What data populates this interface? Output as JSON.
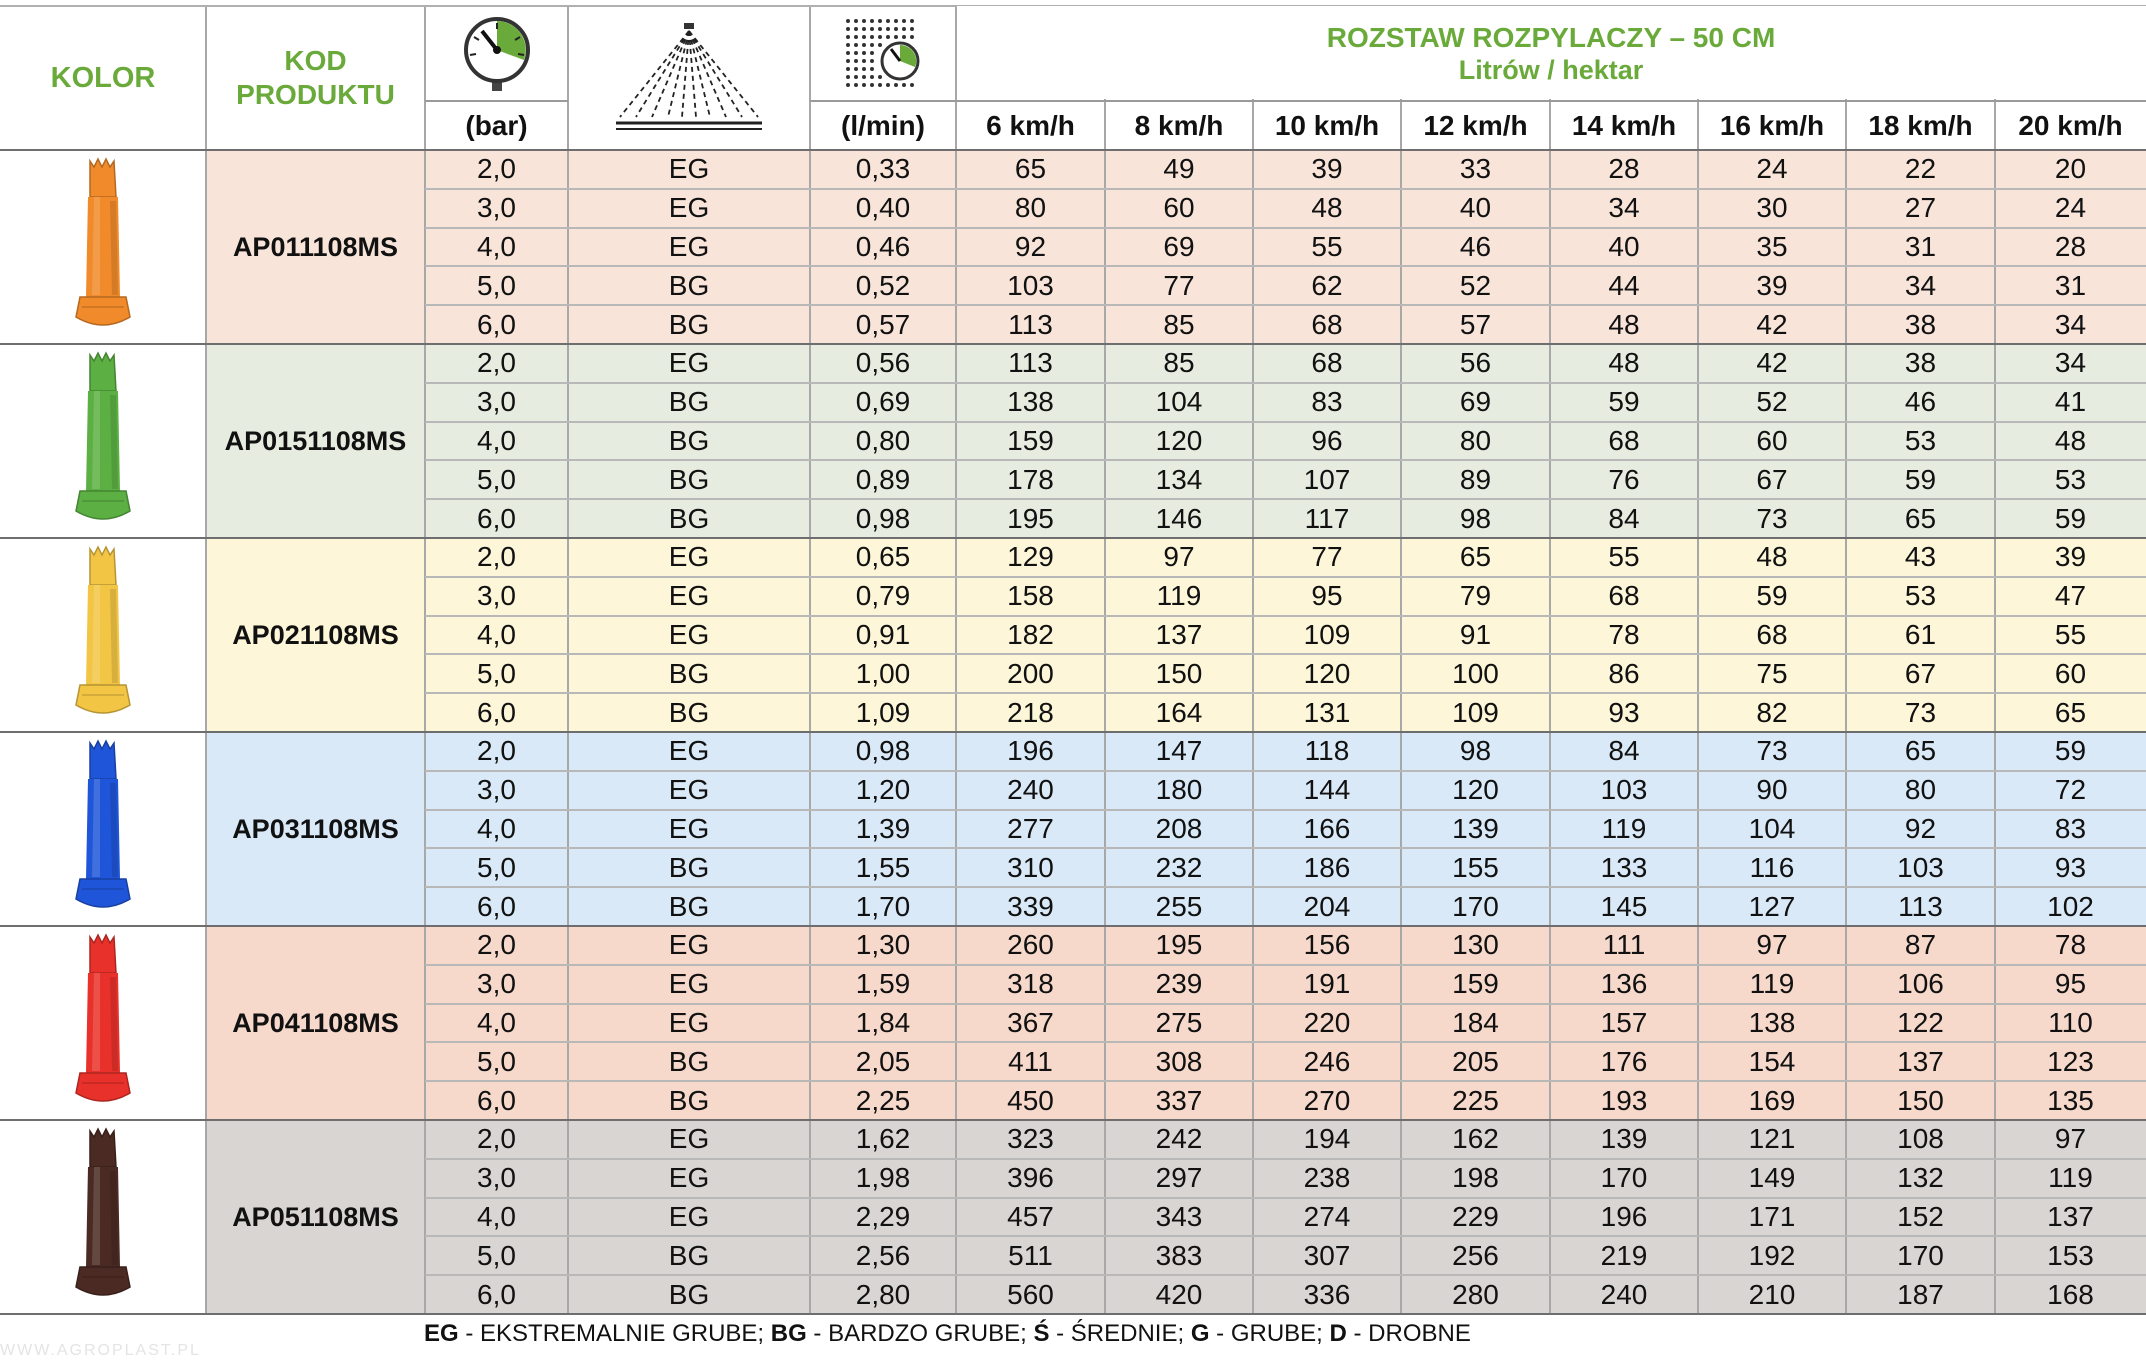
{
  "header": {
    "kolor": "KOLOR",
    "kod_line1": "KOD",
    "kod_line2": "PRODUKTU",
    "pressure_unit": "(bar)",
    "flow_unit": "(l/min)",
    "spacing_title": "ROZSTAW ROZPYLACZY – 50 CM",
    "spacing_subtitle": "Litrów / hektar",
    "speeds": [
      "6 km/h",
      "8 km/h",
      "10 km/h",
      "12 km/h",
      "14 km/h",
      "16 km/h",
      "18 km/h",
      "20 km/h"
    ],
    "icons": [
      "pressure-gauge-icon",
      "spray-fan-icon",
      "flow-gauge-icon"
    ]
  },
  "nozzles": [
    {
      "code": "AP011108MS",
      "color_name": "orange",
      "nozzle_color": "#f08a2a",
      "row_bg": "#f8e4d9",
      "rows": [
        {
          "bar": "2,0",
          "drop": "EG",
          "flow": "0,33",
          "rates": [
            "65",
            "49",
            "39",
            "33",
            "28",
            "24",
            "22",
            "20"
          ]
        },
        {
          "bar": "3,0",
          "drop": "EG",
          "flow": "0,40",
          "rates": [
            "80",
            "60",
            "48",
            "40",
            "34",
            "30",
            "27",
            "24"
          ]
        },
        {
          "bar": "4,0",
          "drop": "EG",
          "flow": "0,46",
          "rates": [
            "92",
            "69",
            "55",
            "46",
            "40",
            "35",
            "31",
            "28"
          ]
        },
        {
          "bar": "5,0",
          "drop": "BG",
          "flow": "0,52",
          "rates": [
            "103",
            "77",
            "62",
            "52",
            "44",
            "39",
            "34",
            "31"
          ]
        },
        {
          "bar": "6,0",
          "drop": "BG",
          "flow": "0,57",
          "rates": [
            "113",
            "85",
            "68",
            "57",
            "48",
            "42",
            "38",
            "34"
          ]
        }
      ]
    },
    {
      "code": "AP0151108MS",
      "color_name": "green",
      "nozzle_color": "#5cb043",
      "row_bg": "#e6ede0",
      "rows": [
        {
          "bar": "2,0",
          "drop": "EG",
          "flow": "0,56",
          "rates": [
            "113",
            "85",
            "68",
            "56",
            "48",
            "42",
            "38",
            "34"
          ]
        },
        {
          "bar": "3,0",
          "drop": "BG",
          "flow": "0,69",
          "rates": [
            "138",
            "104",
            "83",
            "69",
            "59",
            "52",
            "46",
            "41"
          ]
        },
        {
          "bar": "4,0",
          "drop": "BG",
          "flow": "0,80",
          "rates": [
            "159",
            "120",
            "96",
            "80",
            "68",
            "60",
            "53",
            "48"
          ]
        },
        {
          "bar": "5,0",
          "drop": "BG",
          "flow": "0,89",
          "rates": [
            "178",
            "134",
            "107",
            "89",
            "76",
            "67",
            "59",
            "53"
          ]
        },
        {
          "bar": "6,0",
          "drop": "BG",
          "flow": "0,98",
          "rates": [
            "195",
            "146",
            "117",
            "98",
            "84",
            "73",
            "65",
            "59"
          ]
        }
      ]
    },
    {
      "code": "AP021108MS",
      "color_name": "yellow",
      "nozzle_color": "#f2c544",
      "row_bg": "#fdf6d8",
      "rows": [
        {
          "bar": "2,0",
          "drop": "EG",
          "flow": "0,65",
          "rates": [
            "129",
            "97",
            "77",
            "65",
            "55",
            "48",
            "43",
            "39"
          ]
        },
        {
          "bar": "3,0",
          "drop": "EG",
          "flow": "0,79",
          "rates": [
            "158",
            "119",
            "95",
            "79",
            "68",
            "59",
            "53",
            "47"
          ]
        },
        {
          "bar": "4,0",
          "drop": "EG",
          "flow": "0,91",
          "rates": [
            "182",
            "137",
            "109",
            "91",
            "78",
            "68",
            "61",
            "55"
          ]
        },
        {
          "bar": "5,0",
          "drop": "BG",
          "flow": "1,00",
          "rates": [
            "200",
            "150",
            "120",
            "100",
            "86",
            "75",
            "67",
            "60"
          ]
        },
        {
          "bar": "6,0",
          "drop": "BG",
          "flow": "1,09",
          "rates": [
            "218",
            "164",
            "131",
            "109",
            "93",
            "82",
            "73",
            "65"
          ]
        }
      ]
    },
    {
      "code": "AP031108MS",
      "color_name": "blue",
      "nozzle_color": "#1f55d8",
      "row_bg": "#d9e9f7",
      "rows": [
        {
          "bar": "2,0",
          "drop": "EG",
          "flow": "0,98",
          "rates": [
            "196",
            "147",
            "118",
            "98",
            "84",
            "73",
            "65",
            "59"
          ]
        },
        {
          "bar": "3,0",
          "drop": "EG",
          "flow": "1,20",
          "rates": [
            "240",
            "180",
            "144",
            "120",
            "103",
            "90",
            "80",
            "72"
          ]
        },
        {
          "bar": "4,0",
          "drop": "EG",
          "flow": "1,39",
          "rates": [
            "277",
            "208",
            "166",
            "139",
            "119",
            "104",
            "92",
            "83"
          ]
        },
        {
          "bar": "5,0",
          "drop": "BG",
          "flow": "1,55",
          "rates": [
            "310",
            "232",
            "186",
            "155",
            "133",
            "116",
            "103",
            "93"
          ]
        },
        {
          "bar": "6,0",
          "drop": "BG",
          "flow": "1,70",
          "rates": [
            "339",
            "255",
            "204",
            "170",
            "145",
            "127",
            "113",
            "102"
          ]
        }
      ]
    },
    {
      "code": "AP041108MS",
      "color_name": "red",
      "nozzle_color": "#e8312a",
      "row_bg": "#f7d9cc",
      "rows": [
        {
          "bar": "2,0",
          "drop": "EG",
          "flow": "1,30",
          "rates": [
            "260",
            "195",
            "156",
            "130",
            "111",
            "97",
            "87",
            "78"
          ]
        },
        {
          "bar": "3,0",
          "drop": "EG",
          "flow": "1,59",
          "rates": [
            "318",
            "239",
            "191",
            "159",
            "136",
            "119",
            "106",
            "95"
          ]
        },
        {
          "bar": "4,0",
          "drop": "EG",
          "flow": "1,84",
          "rates": [
            "367",
            "275",
            "220",
            "184",
            "157",
            "138",
            "122",
            "110"
          ]
        },
        {
          "bar": "5,0",
          "drop": "BG",
          "flow": "2,05",
          "rates": [
            "411",
            "308",
            "246",
            "205",
            "176",
            "154",
            "137",
            "123"
          ]
        },
        {
          "bar": "6,0",
          "drop": "BG",
          "flow": "2,25",
          "rates": [
            "450",
            "337",
            "270",
            "225",
            "193",
            "169",
            "150",
            "135"
          ]
        }
      ]
    },
    {
      "code": "AP051108MS",
      "color_name": "brown",
      "nozzle_color": "#4a2a22",
      "row_bg": "#d9d5d2",
      "rows": [
        {
          "bar": "2,0",
          "drop": "EG",
          "flow": "1,62",
          "rates": [
            "323",
            "242",
            "194",
            "162",
            "139",
            "121",
            "108",
            "97"
          ]
        },
        {
          "bar": "3,0",
          "drop": "EG",
          "flow": "1,98",
          "rates": [
            "396",
            "297",
            "238",
            "198",
            "170",
            "149",
            "132",
            "119"
          ]
        },
        {
          "bar": "4,0",
          "drop": "EG",
          "flow": "2,29",
          "rates": [
            "457",
            "343",
            "274",
            "229",
            "196",
            "171",
            "152",
            "137"
          ]
        },
        {
          "bar": "5,0",
          "drop": "BG",
          "flow": "2,56",
          "rates": [
            "511",
            "383",
            "307",
            "256",
            "219",
            "192",
            "170",
            "153"
          ]
        },
        {
          "bar": "6,0",
          "drop": "BG",
          "flow": "2,80",
          "rates": [
            "560",
            "420",
            "336",
            "280",
            "240",
            "210",
            "187",
            "168"
          ]
        }
      ]
    }
  ],
  "legend": [
    {
      "abbr": "EG",
      "text": " - EKSTREMALNIE GRUBE; "
    },
    {
      "abbr": "BG",
      "text": " - BARDZO GRUBE; "
    },
    {
      "abbr": "Ś",
      "text": " - ŚREDNIE; "
    },
    {
      "abbr": "G",
      "text": " - GRUBE; "
    },
    {
      "abbr": "D",
      "text": " - DROBNE"
    }
  ],
  "watermark": "WWW.AGROPLAST.PL",
  "colors": {
    "header_green": "#6aaa3a",
    "grid": "#a8a8a8"
  }
}
